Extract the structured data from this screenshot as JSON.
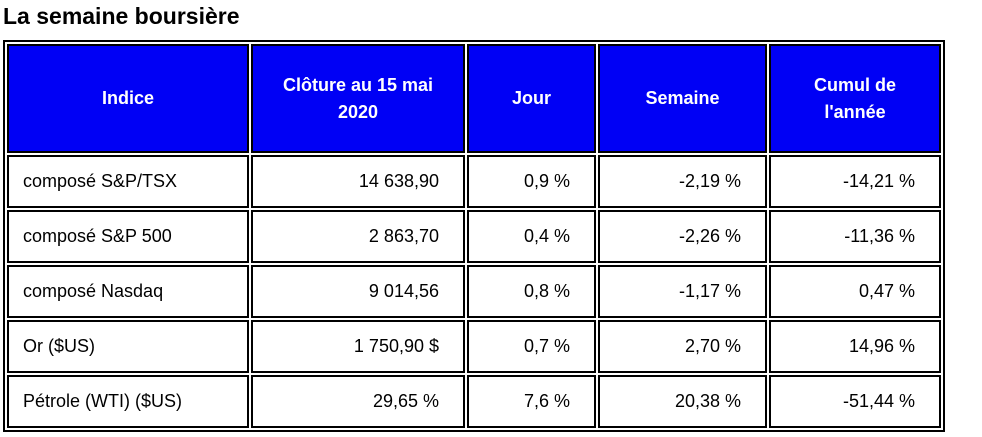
{
  "title": "La semaine boursière",
  "colors": {
    "header_bg": "#0000f5",
    "header_text": "#ffffff"
  },
  "table": {
    "headers": [
      "Indice",
      "Clôture au 15 mai 2020",
      "Jour",
      "Semaine",
      "Cumul de l'année"
    ],
    "rows": [
      [
        "composé S&P/TSX",
        "14 638,90",
        "0,9 %",
        "-2,19 %",
        "-14,21 %"
      ],
      [
        "composé S&P 500",
        "2 863,70",
        "0,4 %",
        "-2,26 %",
        "-11,36 %"
      ],
      [
        "composé Nasdaq",
        "9 014,56",
        "0,8 %",
        "-1,17 %",
        "0,47 %"
      ],
      [
        "Or ($US)",
        "1 750,90 $",
        "0,7 %",
        "2,70 %",
        "14,96 %"
      ],
      [
        "Pétrole (WTI) ($US)",
        "29,65 %",
        "7,6 %",
        "20,38 %",
        "-51,44 %"
      ]
    ]
  }
}
